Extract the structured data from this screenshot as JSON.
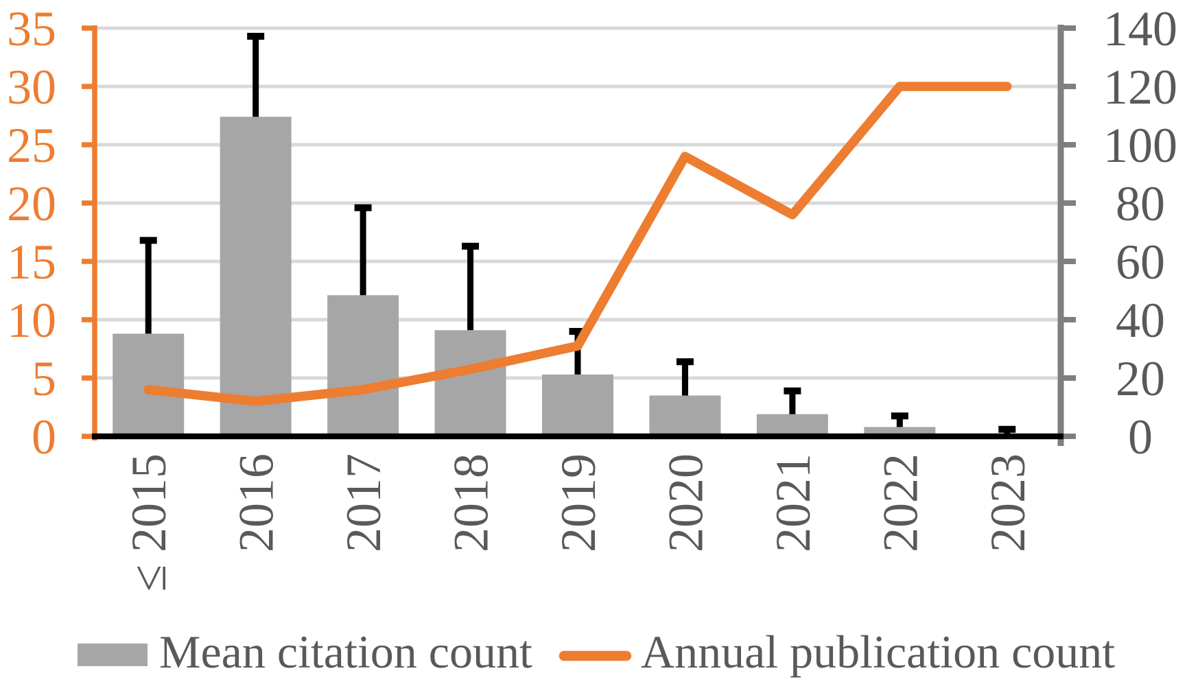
{
  "chart_data": {
    "type": "bar",
    "subtype": "dual-axis bar+line combo",
    "categories": [
      "≤ 2015",
      "2016",
      "2017",
      "2018",
      "2019",
      "2020",
      "2021",
      "2022",
      "2023"
    ],
    "series": [
      {
        "name": "Mean citation count",
        "type": "bar",
        "axis": "left",
        "color": "#A6A6A6",
        "values": [
          8.8,
          27.4,
          12.1,
          9.1,
          5.3,
          3.5,
          1.9,
          0.8,
          0.1
        ],
        "error_upper": [
          8.0,
          6.9,
          7.5,
          7.2,
          3.7,
          2.9,
          2.0,
          0.95,
          0.5
        ],
        "error_color": "#000000"
      },
      {
        "name": "Annual publication count",
        "type": "line",
        "axis": "right",
        "color": "#ED7D31",
        "values": [
          16,
          12,
          16,
          23,
          31,
          96,
          76,
          120,
          120
        ]
      }
    ],
    "left_axis": {
      "min": 0,
      "max": 35,
      "step": 5,
      "tick_labels": [
        "0",
        "5",
        "10",
        "15",
        "20",
        "25",
        "30",
        "35"
      ],
      "color": "#ED7D31"
    },
    "right_axis": {
      "min": 0,
      "max": 140,
      "step": 20,
      "tick_labels": [
        "0",
        "20",
        "40",
        "60",
        "80",
        "100",
        "120",
        "140"
      ],
      "label_color": "#595959",
      "line_color": "#7F7F7F"
    },
    "x_axis": {
      "line_color": "#000000",
      "label_color": "#595959",
      "label_rotation_deg": -90
    },
    "grid": {
      "show": true,
      "color": "#D9D9D9"
    },
    "legend_position": "bottom",
    "title": "",
    "xlabel": "",
    "ylabel": ""
  },
  "legend": {
    "items": [
      {
        "label": "Mean citation count",
        "swatch": "bar",
        "color": "#A6A6A6"
      },
      {
        "label": "Annual publication count",
        "swatch": "line",
        "color": "#ED7D31"
      }
    ],
    "text_color": "#595959"
  }
}
